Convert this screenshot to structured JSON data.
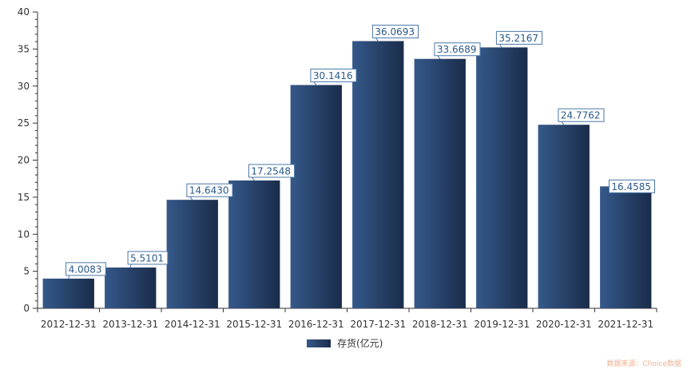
{
  "chart_data": {
    "type": "bar",
    "categories": [
      "2012-12-31",
      "2013-12-31",
      "2014-12-31",
      "2015-12-31",
      "2016-12-31",
      "2017-12-31",
      "2018-12-31",
      "2019-12-31",
      "2020-12-31",
      "2021-12-31"
    ],
    "series": [
      {
        "name": "存货(亿元)",
        "values": [
          4.0083,
          5.5101,
          14.643,
          17.2548,
          30.1416,
          36.0693,
          33.6689,
          35.2167,
          24.7762,
          16.4585
        ],
        "labels": [
          "4.0083",
          "5.5101",
          "14.6430",
          "17.2548",
          "30.1416",
          "36.0693",
          "33.6689",
          "35.2167",
          "24.7762",
          "16.4585"
        ]
      }
    ],
    "ylim": [
      0,
      40
    ],
    "yticks": [
      0,
      5,
      10,
      15,
      20,
      25,
      30,
      35,
      40
    ],
    "legend_position": "bottom-center",
    "grid": false,
    "colors": {
      "bar_light": "#35598a",
      "bar_dark": "#1a2c4a",
      "axis": "#333333",
      "label_border": "#4a78a8",
      "label_text": "#2a5a8a"
    }
  },
  "source": "数据来源：Choice数据"
}
